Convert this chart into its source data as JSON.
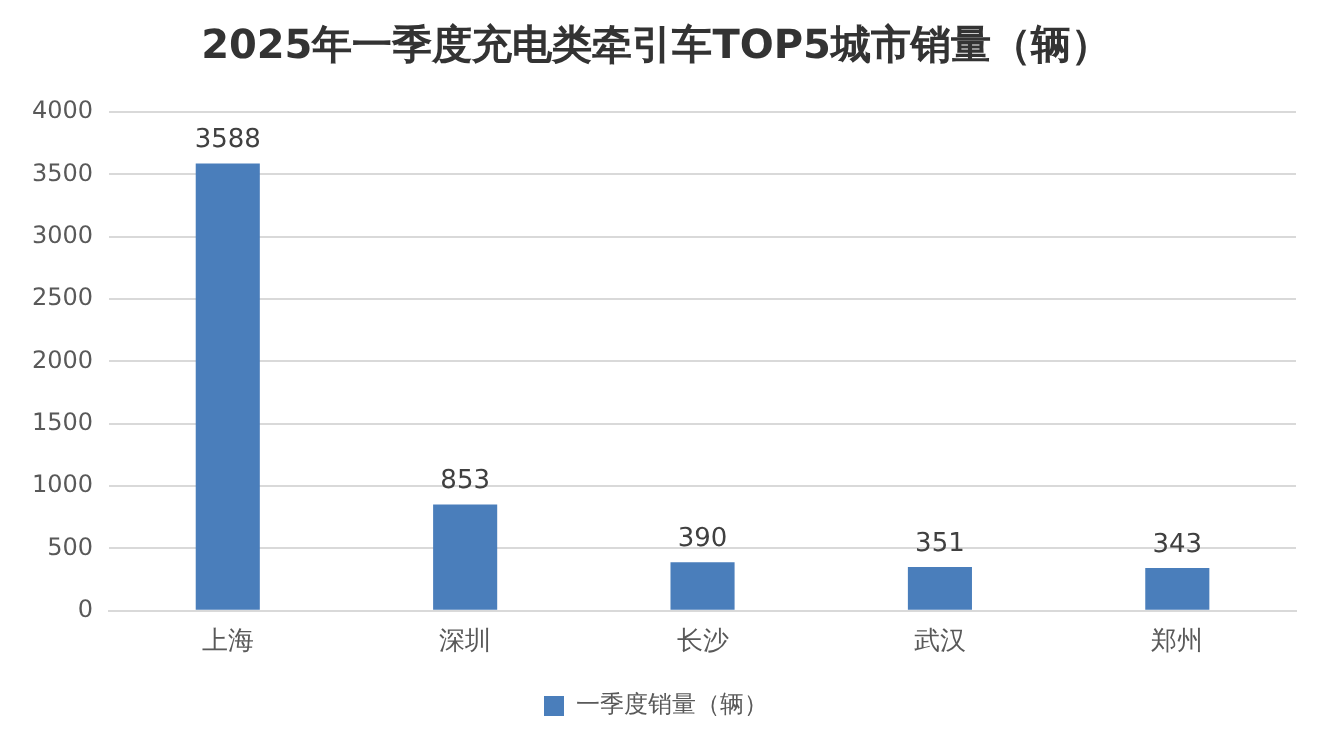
{
  "chart_data": {
    "type": "bar",
    "title": "2025年一季度充电类牵引车TOP5城市销量（辆）",
    "categories": [
      "上海",
      "深圳",
      "长沙",
      "武汉",
      "郑州"
    ],
    "series": [
      {
        "name": "一季度销量（辆）",
        "color": "#4a7ebb",
        "values": [
          3588,
          853,
          390,
          351,
          343
        ]
      }
    ],
    "ylim": [
      0,
      4000
    ],
    "yticks": [
      0,
      500,
      1000,
      1500,
      2000,
      2500,
      3000,
      3500,
      4000
    ],
    "grid": "y",
    "legend": "bottom",
    "data_labels": true
  }
}
